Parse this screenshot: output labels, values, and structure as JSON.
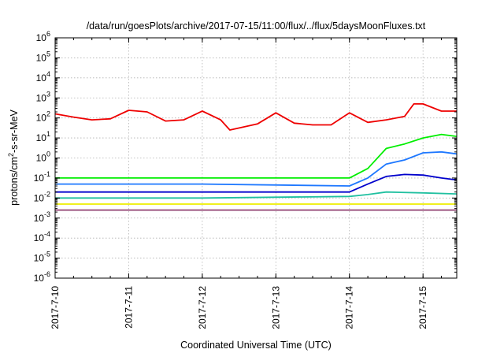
{
  "chart_data": {
    "type": "line",
    "title": "/data/run/goesPlots/archive/2017-07-15/11:00/flux/../flux/5daysMoonFluxes.txt",
    "xlabel": "Coordinated Universal Time (UTC)",
    "ylabel": {
      "prefix": "protons/cm",
      "sup": "2",
      "suffix": "-s-sr-MeV"
    },
    "y_scale": "log",
    "ylim": [
      1e-06,
      1000000.0
    ],
    "y_ticks": [
      {
        "value": -6,
        "base": "10",
        "exp": "-6"
      },
      {
        "value": -5,
        "base": "10",
        "exp": "-5"
      },
      {
        "value": -4,
        "base": "10",
        "exp": "-4"
      },
      {
        "value": -3,
        "base": "10",
        "exp": "-3"
      },
      {
        "value": -2,
        "base": "10",
        "exp": "-2"
      },
      {
        "value": -1,
        "base": "10",
        "exp": "-1"
      },
      {
        "value": 0,
        "base": "10",
        "exp": "0"
      },
      {
        "value": 1,
        "base": "10",
        "exp": "1"
      },
      {
        "value": 2,
        "base": "10",
        "exp": "2"
      },
      {
        "value": 3,
        "base": "10",
        "exp": "3"
      },
      {
        "value": 4,
        "base": "10",
        "exp": "4"
      },
      {
        "value": 5,
        "base": "10",
        "exp": "5"
      },
      {
        "value": 6,
        "base": "10",
        "exp": "6"
      }
    ],
    "x_start": "2017-7-10",
    "x_end": "2017-7-15 11:00",
    "x_ticks": [
      "2017-7-10",
      "2017-7-11",
      "2017-7-12",
      "2017-7-13",
      "2017-7-14",
      "2017-7-15"
    ],
    "grid": true,
    "legend": "none",
    "series": [
      {
        "color": "#ee0000",
        "points": [
          [
            "2017-7-10 00:00",
            160
          ],
          [
            "2017-7-10 06:00",
            110
          ],
          [
            "2017-7-10 12:00",
            80
          ],
          [
            "2017-7-10 18:00",
            90
          ],
          [
            "2017-7-11 00:00",
            240
          ],
          [
            "2017-7-11 06:00",
            200
          ],
          [
            "2017-7-11 12:00",
            70
          ],
          [
            "2017-7-11 18:00",
            80
          ],
          [
            "2017-7-12 00:00",
            220
          ],
          [
            "2017-7-12 06:00",
            80
          ],
          [
            "2017-7-12 09:00",
            25
          ],
          [
            "2017-7-12 18:00",
            50
          ],
          [
            "2017-7-13 00:00",
            180
          ],
          [
            "2017-7-13 06:00",
            55
          ],
          [
            "2017-7-13 12:00",
            45
          ],
          [
            "2017-7-13 18:00",
            45
          ],
          [
            "2017-7-14 00:00",
            180
          ],
          [
            "2017-7-14 06:00",
            60
          ],
          [
            "2017-7-14 12:00",
            80
          ],
          [
            "2017-7-14 18:00",
            120
          ],
          [
            "2017-7-14 21:00",
            500
          ],
          [
            "2017-7-15 00:00",
            500
          ],
          [
            "2017-7-15 06:00",
            220
          ],
          [
            "2017-7-15 11:00",
            220
          ]
        ]
      },
      {
        "color": "#00ee00",
        "points": [
          [
            "2017-7-10 00:00",
            0.1
          ],
          [
            "2017-7-12 00:00",
            0.1
          ],
          [
            "2017-7-14 00:00",
            0.1
          ],
          [
            "2017-7-14 06:00",
            0.3
          ],
          [
            "2017-7-14 12:00",
            3
          ],
          [
            "2017-7-14 18:00",
            5
          ],
          [
            "2017-7-15 00:00",
            10
          ],
          [
            "2017-7-15 06:00",
            15
          ],
          [
            "2017-7-15 11:00",
            12
          ]
        ]
      },
      {
        "color": "#1e78ff",
        "points": [
          [
            "2017-7-10 00:00",
            0.05
          ],
          [
            "2017-7-12 00:00",
            0.05
          ],
          [
            "2017-7-14 00:00",
            0.04
          ],
          [
            "2017-7-14 06:00",
            0.1
          ],
          [
            "2017-7-14 12:00",
            0.5
          ],
          [
            "2017-7-14 18:00",
            0.8
          ],
          [
            "2017-7-15 00:00",
            1.8
          ],
          [
            "2017-7-15 06:00",
            2
          ],
          [
            "2017-7-15 11:00",
            1.6
          ]
        ]
      },
      {
        "color": "#0000cc",
        "points": [
          [
            "2017-7-10 00:00",
            0.02
          ],
          [
            "2017-7-12 00:00",
            0.02
          ],
          [
            "2017-7-14 00:00",
            0.02
          ],
          [
            "2017-7-14 06:00",
            0.05
          ],
          [
            "2017-7-14 12:00",
            0.12
          ],
          [
            "2017-7-14 18:00",
            0.15
          ],
          [
            "2017-7-15 00:00",
            0.14
          ],
          [
            "2017-7-15 06:00",
            0.1
          ],
          [
            "2017-7-15 11:00",
            0.08
          ]
        ]
      },
      {
        "color": "#20c0a0",
        "points": [
          [
            "2017-7-10 00:00",
            0.01
          ],
          [
            "2017-7-12 00:00",
            0.01
          ],
          [
            "2017-7-14 00:00",
            0.012
          ],
          [
            "2017-7-14 06:00",
            0.015
          ],
          [
            "2017-7-14 12:00",
            0.02
          ],
          [
            "2017-7-15 00:00",
            0.018
          ],
          [
            "2017-7-15 11:00",
            0.016
          ]
        ]
      },
      {
        "color": "#eeee00",
        "points": [
          [
            "2017-7-10 00:00",
            0.005
          ],
          [
            "2017-7-12 00:00",
            0.005
          ],
          [
            "2017-7-14 00:00",
            0.005
          ],
          [
            "2017-7-15 11:00",
            0.005
          ]
        ]
      },
      {
        "color": "#904070",
        "points": [
          [
            "2017-7-10 00:00",
            0.0025
          ],
          [
            "2017-7-12 00:00",
            0.0025
          ],
          [
            "2017-7-14 00:00",
            0.0025
          ],
          [
            "2017-7-15 11:00",
            0.0025
          ]
        ]
      }
    ]
  }
}
